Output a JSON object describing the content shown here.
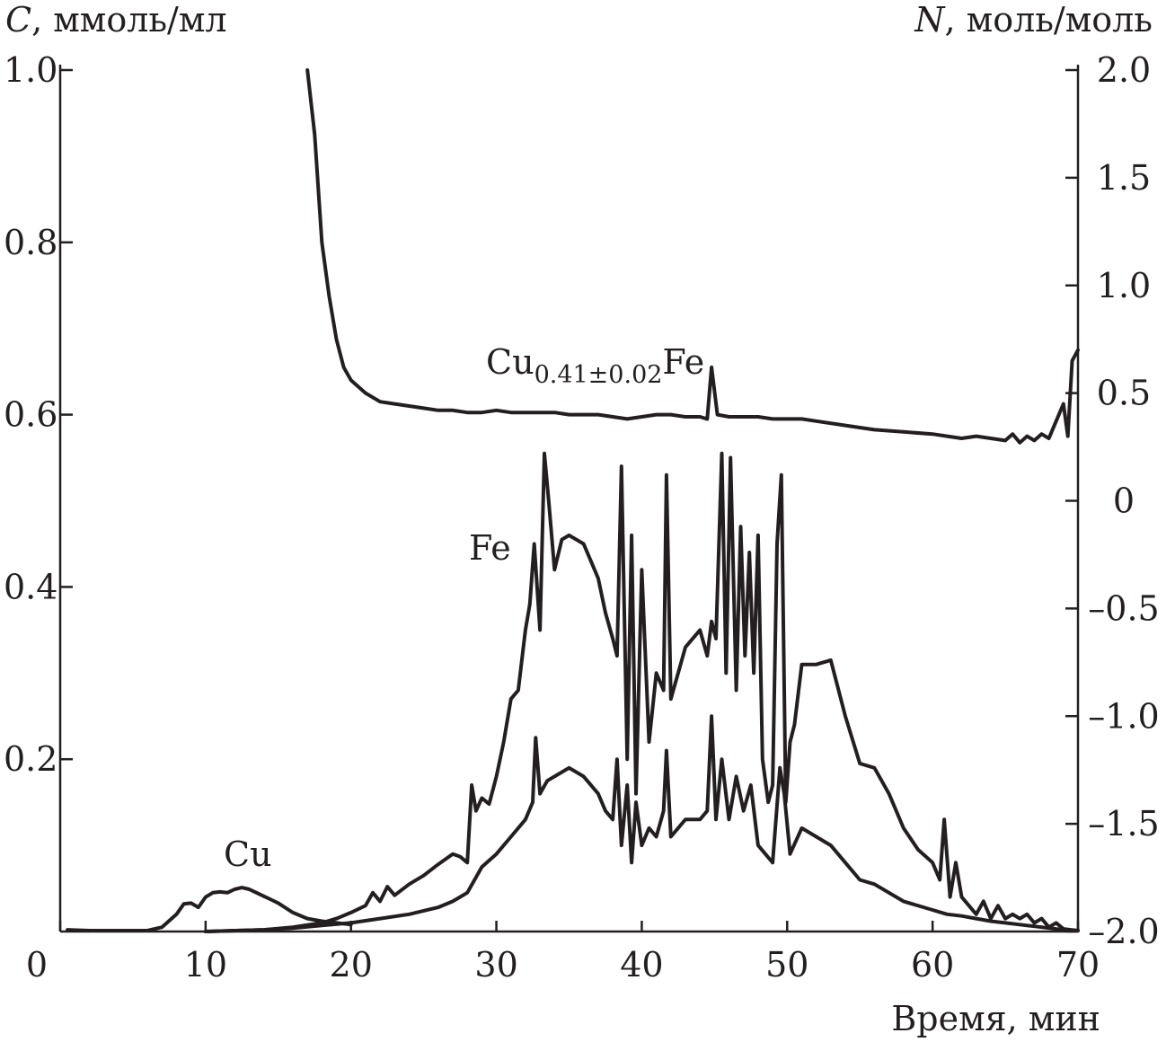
{
  "chart_data": {
    "type": "line",
    "title": "",
    "xlabel": "Время, мин",
    "ylabel_left": {
      "symbol": "C",
      "unit": ", ммоль/мл"
    },
    "ylabel_right": {
      "symbol": "N",
      "unit": ", моль/моль"
    },
    "xlim": [
      0,
      70
    ],
    "ylim_left": [
      0,
      1.0
    ],
    "ylim_right": [
      -2.0,
      2.0
    ],
    "x_ticks": [
      "0",
      "10",
      "20",
      "30",
      "40",
      "50",
      "60",
      "70"
    ],
    "y_left_ticks": [
      "1.0",
      "0.8",
      "0.6",
      "0.4",
      "0.2"
    ],
    "y_right_ticks": [
      "2.0",
      "1.5",
      "1.0",
      "0.5",
      "0",
      "–0.5",
      "–1.0",
      "–1.5",
      "–2.0"
    ],
    "grid": false,
    "annotations": {
      "cu": "Cu",
      "fe": "Fe",
      "ratio_base": "Cu",
      "ratio_sub": "0.41±0.02",
      "ratio_tail": "Fe"
    },
    "series": [
      {
        "axis": "left",
        "x": [
          0.5,
          2,
          4,
          6,
          7,
          8,
          8.5,
          9,
          9.5,
          10,
          10.5,
          11,
          11.5,
          12,
          12.5,
          13,
          13.5,
          14,
          14.5,
          15,
          16,
          17,
          18,
          19,
          20
        ],
        "values": [
          0.002,
          0.001,
          0.001,
          0.001,
          0.005,
          0.02,
          0.032,
          0.033,
          0.028,
          0.04,
          0.045,
          0.046,
          0.045,
          0.049,
          0.051,
          0.049,
          0.045,
          0.041,
          0.037,
          0.033,
          0.022,
          0.015,
          0.012,
          0.01,
          0.008
        ]
      },
      {
        "axis": "left",
        "x": [
          10,
          14,
          16,
          18,
          19,
          20,
          21,
          21.5,
          22,
          22.5,
          23,
          24,
          25,
          26,
          27,
          27.5,
          28,
          28.3,
          28.6,
          29,
          29.5,
          30,
          30.5,
          31,
          31.5,
          32,
          32.3,
          32.6,
          33,
          33.3,
          33.6,
          34,
          34.5,
          35,
          36,
          37,
          37.5,
          38,
          38.3,
          38.6,
          39,
          39.3,
          39.6,
          40,
          40.5,
          41,
          41.5,
          41.7,
          42,
          42.5,
          43,
          43.5,
          44,
          44.5,
          44.8,
          45.1,
          45.5,
          45.8,
          46.1,
          46.5,
          46.8,
          47.1,
          47.4,
          47.7,
          48,
          48.3,
          48.7,
          49,
          49.3,
          49.6,
          49.9,
          50.2,
          50.5,
          51,
          52,
          53,
          54,
          55,
          56,
          57,
          58,
          59,
          60,
          60.5,
          60.8,
          61.2,
          61.6,
          62,
          62.5,
          63,
          63.5,
          64,
          64.5,
          65,
          65.5,
          66,
          66.5,
          67,
          67.5,
          68,
          68.5,
          69,
          69.5,
          70
        ],
        "values": [
          0.0,
          0.002,
          0.005,
          0.01,
          0.015,
          0.022,
          0.03,
          0.045,
          0.035,
          0.052,
          0.042,
          0.055,
          0.065,
          0.078,
          0.09,
          0.087,
          0.08,
          0.17,
          0.14,
          0.155,
          0.148,
          0.18,
          0.22,
          0.27,
          0.28,
          0.35,
          0.38,
          0.45,
          0.35,
          0.555,
          0.5,
          0.42,
          0.455,
          0.46,
          0.45,
          0.41,
          0.37,
          0.34,
          0.32,
          0.54,
          0.2,
          0.46,
          0.16,
          0.42,
          0.22,
          0.3,
          0.28,
          0.53,
          0.27,
          0.3,
          0.33,
          0.34,
          0.35,
          0.32,
          0.36,
          0.34,
          0.555,
          0.3,
          0.55,
          0.28,
          0.47,
          0.32,
          0.44,
          0.3,
          0.46,
          0.2,
          0.15,
          0.17,
          0.45,
          0.53,
          0.15,
          0.22,
          0.24,
          0.31,
          0.31,
          0.315,
          0.25,
          0.195,
          0.19,
          0.16,
          0.12,
          0.095,
          0.08,
          0.06,
          0.13,
          0.04,
          0.08,
          0.04,
          0.03,
          0.02,
          0.035,
          0.015,
          0.03,
          0.015,
          0.02,
          0.015,
          0.02,
          0.01,
          0.015,
          0.005,
          0.01,
          0.003,
          0.002,
          0.001
        ]
      },
      {
        "axis": "left",
        "x": [
          10,
          14,
          16,
          18,
          20,
          22,
          24,
          26,
          27,
          27.5,
          28,
          28.5,
          29,
          30,
          31,
          32,
          32.5,
          32.7,
          33,
          33.5,
          34,
          35,
          36,
          37,
          37.5,
          38,
          38.3,
          38.6,
          39,
          39.3,
          39.6,
          40,
          40.5,
          41,
          41.5,
          41.7,
          42,
          43,
          44,
          44.5,
          44.8,
          45.1,
          45.5,
          46,
          46.5,
          47,
          47.5,
          48,
          48.5,
          49,
          49.5,
          49.8,
          50.2,
          51,
          52,
          53,
          54,
          55,
          56,
          58,
          60,
          61,
          62,
          63,
          64,
          65,
          66,
          67,
          68,
          69,
          70
        ],
        "values": [
          0.0,
          0.002,
          0.004,
          0.007,
          0.01,
          0.015,
          0.02,
          0.028,
          0.035,
          0.04,
          0.045,
          0.06,
          0.075,
          0.09,
          0.11,
          0.13,
          0.15,
          0.225,
          0.16,
          0.175,
          0.18,
          0.19,
          0.18,
          0.16,
          0.14,
          0.13,
          0.2,
          0.1,
          0.17,
          0.08,
          0.15,
          0.1,
          0.12,
          0.11,
          0.14,
          0.21,
          0.11,
          0.13,
          0.13,
          0.14,
          0.25,
          0.13,
          0.2,
          0.13,
          0.18,
          0.14,
          0.17,
          0.1,
          0.09,
          0.08,
          0.19,
          0.16,
          0.09,
          0.12,
          0.11,
          0.1,
          0.08,
          0.06,
          0.055,
          0.035,
          0.025,
          0.02,
          0.018,
          0.015,
          0.012,
          0.01,
          0.008,
          0.006,
          0.004,
          0.002,
          0.001
        ]
      },
      {
        "axis": "right",
        "x": [
          17,
          17.5,
          18,
          18.5,
          19,
          19.5,
          20,
          21,
          22,
          23,
          24,
          25,
          26,
          27,
          28,
          29,
          30,
          31,
          32,
          33,
          34,
          35,
          36,
          37,
          38,
          39,
          40,
          41,
          42,
          43,
          44,
          44.5,
          44.8,
          45.2,
          46,
          47,
          48,
          49,
          50,
          51,
          52,
          54,
          56,
          58,
          60,
          61,
          62,
          63,
          64,
          65,
          65.5,
          66,
          66.5,
          67,
          67.5,
          68,
          68.5,
          69,
          69.3,
          69.6,
          70
        ],
        "values": [
          2.0,
          1.7,
          1.2,
          0.95,
          0.75,
          0.62,
          0.56,
          0.5,
          0.46,
          0.45,
          0.44,
          0.43,
          0.42,
          0.42,
          0.41,
          0.41,
          0.42,
          0.41,
          0.41,
          0.41,
          0.41,
          0.4,
          0.4,
          0.4,
          0.39,
          0.38,
          0.39,
          0.4,
          0.4,
          0.39,
          0.39,
          0.38,
          0.62,
          0.4,
          0.39,
          0.39,
          0.39,
          0.38,
          0.38,
          0.38,
          0.37,
          0.35,
          0.33,
          0.32,
          0.31,
          0.3,
          0.29,
          0.3,
          0.29,
          0.28,
          0.31,
          0.27,
          0.3,
          0.28,
          0.31,
          0.29,
          0.37,
          0.45,
          0.3,
          0.65,
          0.7
        ]
      }
    ]
  }
}
